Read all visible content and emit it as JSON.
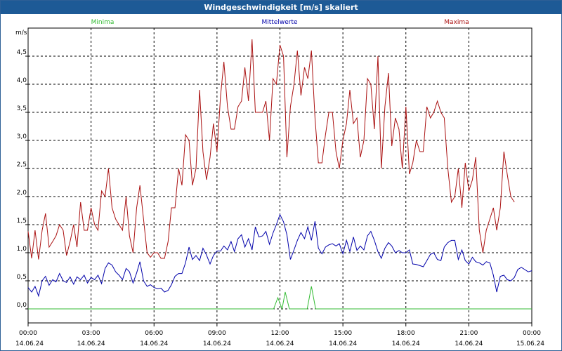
{
  "title": "Windgeschwindigkeit [m/s] skaliert",
  "colors": {
    "minima": "#33bb33",
    "mittelwerte": "#0000aa",
    "maxima": "#aa1111",
    "titlebar": "#1d5a96",
    "grid": "#000000"
  },
  "chart_data": {
    "type": "line",
    "ylabel": "m/s",
    "ylim": [
      -0.25,
      5.0
    ],
    "grid": true,
    "legend_placement": "top",
    "y_ticks": [
      "0,0",
      "0,5",
      "1,0",
      "1,5",
      "2,0",
      "2,5",
      "3,0",
      "3,5",
      "4,0",
      "4,5"
    ],
    "y_tick_values": [
      0,
      0.5,
      1.0,
      1.5,
      2.0,
      2.5,
      3.0,
      3.5,
      4.0,
      4.5
    ],
    "x_ticks": [
      {
        "time": "00:00",
        "date": "14.06.24"
      },
      {
        "time": "03:00",
        "date": "14.06.24"
      },
      {
        "time": "06:00",
        "date": "14.06.24"
      },
      {
        "time": "09:00",
        "date": "14.06.24"
      },
      {
        "time": "12:00",
        "date": "14.06.24"
      },
      {
        "time": "15:00",
        "date": "14.06.24"
      },
      {
        "time": "18:00",
        "date": "14.06.24"
      },
      {
        "time": "21:00",
        "date": "14.06.24"
      },
      {
        "time": "00:00",
        "date": "15.06.24"
      }
    ],
    "x_hours": [
      0,
      3,
      6,
      9,
      12,
      15,
      18,
      21,
      24
    ],
    "series": [
      {
        "name": "Minima",
        "key": "minima",
        "points": [
          [
            0,
            0
          ],
          [
            11.7,
            0
          ],
          [
            11.9,
            0.2
          ],
          [
            12.1,
            0
          ],
          [
            12.25,
            0.3
          ],
          [
            12.45,
            0
          ],
          [
            13.3,
            0
          ],
          [
            13.5,
            0.4
          ],
          [
            13.7,
            0
          ],
          [
            24,
            0
          ]
        ]
      },
      {
        "name": "Mittelwerte",
        "key": "mittelwerte",
        "points": [
          [
            0,
            0.38
          ],
          [
            0.17,
            0.3
          ],
          [
            0.33,
            0.4
          ],
          [
            0.5,
            0.23
          ],
          [
            0.67,
            0.5
          ],
          [
            0.83,
            0.58
          ],
          [
            1.0,
            0.42
          ],
          [
            1.17,
            0.52
          ],
          [
            1.33,
            0.48
          ],
          [
            1.5,
            0.63
          ],
          [
            1.67,
            0.5
          ],
          [
            1.83,
            0.47
          ],
          [
            2.0,
            0.57
          ],
          [
            2.17,
            0.44
          ],
          [
            2.33,
            0.57
          ],
          [
            2.5,
            0.52
          ],
          [
            2.67,
            0.6
          ],
          [
            2.83,
            0.46
          ],
          [
            3.0,
            0.56
          ],
          [
            3.17,
            0.52
          ],
          [
            3.33,
            0.6
          ],
          [
            3.5,
            0.45
          ],
          [
            3.67,
            0.72
          ],
          [
            3.83,
            0.82
          ],
          [
            4.0,
            0.78
          ],
          [
            4.17,
            0.66
          ],
          [
            4.33,
            0.6
          ],
          [
            4.5,
            0.52
          ],
          [
            4.67,
            0.72
          ],
          [
            4.83,
            0.66
          ],
          [
            5.0,
            0.46
          ],
          [
            5.17,
            0.64
          ],
          [
            5.33,
            0.84
          ],
          [
            5.5,
            0.5
          ],
          [
            5.67,
            0.4
          ],
          [
            5.83,
            0.43
          ],
          [
            6.0,
            0.38
          ],
          [
            6.17,
            0.36
          ],
          [
            6.33,
            0.37
          ],
          [
            6.5,
            0.3
          ],
          [
            6.67,
            0.33
          ],
          [
            6.83,
            0.43
          ],
          [
            7.0,
            0.58
          ],
          [
            7.17,
            0.63
          ],
          [
            7.33,
            0.63
          ],
          [
            7.5,
            0.82
          ],
          [
            7.67,
            1.1
          ],
          [
            7.83,
            0.88
          ],
          [
            8.0,
            0.95
          ],
          [
            8.17,
            0.86
          ],
          [
            8.33,
            1.08
          ],
          [
            8.5,
            0.96
          ],
          [
            8.67,
            0.8
          ],
          [
            8.83,
            0.95
          ],
          [
            9.0,
            1.03
          ],
          [
            9.17,
            1.03
          ],
          [
            9.33,
            1.12
          ],
          [
            9.5,
            1.05
          ],
          [
            9.67,
            1.2
          ],
          [
            9.83,
            1.02
          ],
          [
            10.0,
            1.25
          ],
          [
            10.17,
            1.32
          ],
          [
            10.33,
            1.1
          ],
          [
            10.5,
            1.25
          ],
          [
            10.67,
            1.05
          ],
          [
            10.83,
            1.46
          ],
          [
            11.0,
            1.28
          ],
          [
            11.17,
            1.3
          ],
          [
            11.33,
            1.38
          ],
          [
            11.5,
            1.15
          ],
          [
            11.67,
            1.35
          ],
          [
            11.83,
            1.5
          ],
          [
            12.0,
            1.68
          ],
          [
            12.17,
            1.55
          ],
          [
            12.33,
            1.32
          ],
          [
            12.5,
            0.88
          ],
          [
            12.67,
            1.05
          ],
          [
            12.83,
            1.22
          ],
          [
            13.0,
            1.36
          ],
          [
            13.17,
            1.25
          ],
          [
            13.33,
            1.46
          ],
          [
            13.5,
            1.22
          ],
          [
            13.67,
            1.56
          ],
          [
            13.83,
            1.08
          ],
          [
            14.0,
            0.98
          ],
          [
            14.17,
            1.1
          ],
          [
            14.33,
            1.14
          ],
          [
            14.5,
            1.16
          ],
          [
            14.67,
            1.12
          ],
          [
            14.83,
            1.16
          ],
          [
            15.0,
            0.98
          ],
          [
            15.17,
            1.22
          ],
          [
            15.33,
            1.02
          ],
          [
            15.5,
            1.28
          ],
          [
            15.67,
            1.04
          ],
          [
            15.83,
            1.12
          ],
          [
            16.0,
            1.05
          ],
          [
            16.17,
            1.3
          ],
          [
            16.33,
            1.38
          ],
          [
            16.5,
            1.22
          ],
          [
            16.67,
            1.02
          ],
          [
            16.83,
            0.9
          ],
          [
            17.0,
            1.08
          ],
          [
            17.17,
            1.18
          ],
          [
            17.33,
            1.12
          ],
          [
            17.5,
            1.0
          ],
          [
            17.67,
            1.04
          ],
          [
            17.83,
            1.0
          ],
          [
            18.0,
            1.0
          ],
          [
            18.17,
            1.05
          ],
          [
            18.33,
            0.8
          ],
          [
            18.5,
            0.79
          ],
          [
            18.67,
            0.77
          ],
          [
            18.83,
            0.75
          ],
          [
            19.0,
            0.86
          ],
          [
            19.17,
            0.97
          ],
          [
            19.33,
            1.0
          ],
          [
            19.5,
            0.88
          ],
          [
            19.67,
            0.86
          ],
          [
            19.83,
            1.1
          ],
          [
            20.0,
            1.18
          ],
          [
            20.17,
            1.22
          ],
          [
            20.33,
            1.22
          ],
          [
            20.5,
            0.88
          ],
          [
            20.67,
            1.05
          ],
          [
            20.83,
            0.86
          ],
          [
            21.0,
            0.8
          ],
          [
            21.17,
            0.92
          ],
          [
            21.33,
            0.84
          ],
          [
            21.5,
            0.82
          ],
          [
            21.67,
            0.78
          ],
          [
            21.83,
            0.84
          ],
          [
            22.0,
            0.82
          ],
          [
            22.17,
            0.6
          ],
          [
            22.33,
            0.3
          ],
          [
            22.5,
            0.58
          ],
          [
            22.67,
            0.6
          ],
          [
            22.83,
            0.52
          ],
          [
            23.0,
            0.5
          ],
          [
            23.17,
            0.56
          ],
          [
            23.33,
            0.7
          ],
          [
            23.5,
            0.74
          ],
          [
            23.67,
            0.7
          ],
          [
            23.83,
            0.66
          ],
          [
            24.0,
            0.68
          ]
        ]
      },
      {
        "name": "Maxima",
        "key": "maxima",
        "points": [
          [
            0,
            1.38
          ],
          [
            0.17,
            0.9
          ],
          [
            0.33,
            1.4
          ],
          [
            0.5,
            0.88
          ],
          [
            0.67,
            1.4
          ],
          [
            0.83,
            1.7
          ],
          [
            1.0,
            1.1
          ],
          [
            1.17,
            1.2
          ],
          [
            1.33,
            1.3
          ],
          [
            1.5,
            1.5
          ],
          [
            1.67,
            1.4
          ],
          [
            1.83,
            0.95
          ],
          [
            2.0,
            1.2
          ],
          [
            2.17,
            1.5
          ],
          [
            2.33,
            1.1
          ],
          [
            2.5,
            1.9
          ],
          [
            2.67,
            1.4
          ],
          [
            2.83,
            1.4
          ],
          [
            3.0,
            1.8
          ],
          [
            3.17,
            1.5
          ],
          [
            3.33,
            1.4
          ],
          [
            3.5,
            2.1
          ],
          [
            3.67,
            2.0
          ],
          [
            3.83,
            2.5
          ],
          [
            4.0,
            1.8
          ],
          [
            4.17,
            1.6
          ],
          [
            4.33,
            1.5
          ],
          [
            4.5,
            1.4
          ],
          [
            4.67,
            2.0
          ],
          [
            4.83,
            1.3
          ],
          [
            5.0,
            1.0
          ],
          [
            5.17,
            1.8
          ],
          [
            5.33,
            2.2
          ],
          [
            5.5,
            1.6
          ],
          [
            5.67,
            1.0
          ],
          [
            5.83,
            0.92
          ],
          [
            6.0,
            1.0
          ],
          [
            6.17,
            1.0
          ],
          [
            6.33,
            0.9
          ],
          [
            6.5,
            0.9
          ],
          [
            6.67,
            1.2
          ],
          [
            6.83,
            1.8
          ],
          [
            7.0,
            1.8
          ],
          [
            7.17,
            2.5
          ],
          [
            7.33,
            2.2
          ],
          [
            7.5,
            3.1
          ],
          [
            7.67,
            3.0
          ],
          [
            7.83,
            2.2
          ],
          [
            8.0,
            2.5
          ],
          [
            8.17,
            3.9
          ],
          [
            8.33,
            2.8
          ],
          [
            8.5,
            2.3
          ],
          [
            8.67,
            2.7
          ],
          [
            8.83,
            3.3
          ],
          [
            9.0,
            2.8
          ],
          [
            9.17,
            3.8
          ],
          [
            9.33,
            4.4
          ],
          [
            9.5,
            3.6
          ],
          [
            9.67,
            3.2
          ],
          [
            9.83,
            3.2
          ],
          [
            10.0,
            3.6
          ],
          [
            10.17,
            3.7
          ],
          [
            10.33,
            4.3
          ],
          [
            10.5,
            3.7
          ],
          [
            10.67,
            4.8
          ],
          [
            10.83,
            3.5
          ],
          [
            11.0,
            3.5
          ],
          [
            11.17,
            3.5
          ],
          [
            11.33,
            3.7
          ],
          [
            11.5,
            3.0
          ],
          [
            11.67,
            4.1
          ],
          [
            11.83,
            4.0
          ],
          [
            12.0,
            4.7
          ],
          [
            12.17,
            4.5
          ],
          [
            12.33,
            2.7
          ],
          [
            12.5,
            3.6
          ],
          [
            12.67,
            4.0
          ],
          [
            12.83,
            4.6
          ],
          [
            13.0,
            3.8
          ],
          [
            13.17,
            4.3
          ],
          [
            13.33,
            4.1
          ],
          [
            13.5,
            4.6
          ],
          [
            13.67,
            3.4
          ],
          [
            13.83,
            2.6
          ],
          [
            14.0,
            2.6
          ],
          [
            14.17,
            3.1
          ],
          [
            14.33,
            3.5
          ],
          [
            14.5,
            3.5
          ],
          [
            14.67,
            2.8
          ],
          [
            14.83,
            2.5
          ],
          [
            15.0,
            3.0
          ],
          [
            15.17,
            3.3
          ],
          [
            15.33,
            3.9
          ],
          [
            15.5,
            3.3
          ],
          [
            15.67,
            3.4
          ],
          [
            15.83,
            2.7
          ],
          [
            16.0,
            3.0
          ],
          [
            16.17,
            4.1
          ],
          [
            16.33,
            4.0
          ],
          [
            16.5,
            3.2
          ],
          [
            16.67,
            4.5
          ],
          [
            16.83,
            2.5
          ],
          [
            17.0,
            3.6
          ],
          [
            17.17,
            4.2
          ],
          [
            17.33,
            2.9
          ],
          [
            17.5,
            3.4
          ],
          [
            17.67,
            3.2
          ],
          [
            17.83,
            2.5
          ],
          [
            18.0,
            3.6
          ],
          [
            18.17,
            2.4
          ],
          [
            18.33,
            2.6
          ],
          [
            18.5,
            3.0
          ],
          [
            18.67,
            2.8
          ],
          [
            18.83,
            2.8
          ],
          [
            19.0,
            3.6
          ],
          [
            19.17,
            3.4
          ],
          [
            19.33,
            3.5
          ],
          [
            19.5,
            3.7
          ],
          [
            19.67,
            3.5
          ],
          [
            19.83,
            3.4
          ],
          [
            20.0,
            2.5
          ],
          [
            20.17,
            1.9
          ],
          [
            20.33,
            2.0
          ],
          [
            20.5,
            2.5
          ],
          [
            20.67,
            1.8
          ],
          [
            20.83,
            2.6
          ],
          [
            21.0,
            2.1
          ],
          [
            21.17,
            2.3
          ],
          [
            21.33,
            2.7
          ],
          [
            21.5,
            1.4
          ],
          [
            21.67,
            1.0
          ],
          [
            21.83,
            1.4
          ],
          [
            22.0,
            1.6
          ],
          [
            22.17,
            1.8
          ],
          [
            22.33,
            1.4
          ],
          [
            22.5,
            1.8
          ],
          [
            22.67,
            2.8
          ],
          [
            22.83,
            2.4
          ],
          [
            23.0,
            2.0
          ],
          [
            23.17,
            1.9
          ]
        ]
      }
    ]
  }
}
